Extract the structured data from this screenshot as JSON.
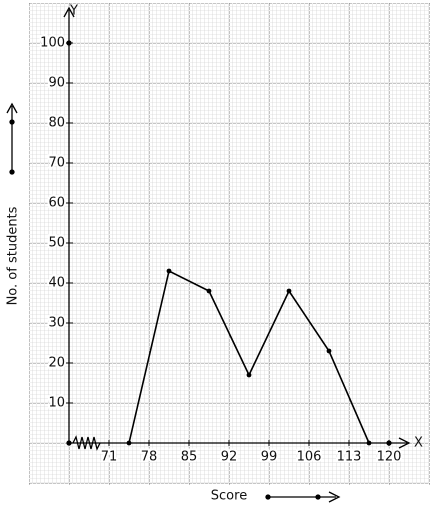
{
  "chart_data": {
    "type": "line",
    "x_label": "Score",
    "y_label": "No. of students",
    "x_axis_name": "X",
    "y_axis_name": "Y",
    "x": [
      74.5,
      81.5,
      88.5,
      95.5,
      102.5,
      109.5,
      116.5
    ],
    "values": [
      0,
      43,
      38,
      17,
      38,
      23,
      0
    ],
    "color": "#000000",
    "xlim": [
      64,
      123
    ],
    "xticks": [
      71,
      78,
      85,
      92,
      99,
      106,
      113,
      120
    ],
    "ylim": [
      0,
      108
    ],
    "yticks": [
      10,
      20,
      30,
      40,
      50,
      60,
      70,
      80,
      90,
      100
    ],
    "grid": true
  }
}
